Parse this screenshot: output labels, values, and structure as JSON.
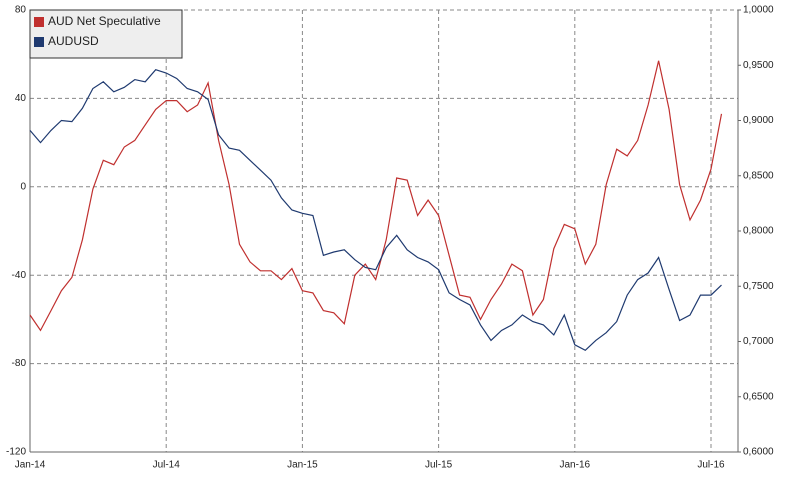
{
  "chart_data": {
    "type": "line",
    "categories": [
      "Jan-14",
      null,
      null,
      null,
      null,
      null,
      null,
      null,
      null,
      null,
      null,
      null,
      null,
      "Jul-14",
      null,
      null,
      null,
      null,
      null,
      null,
      null,
      null,
      null,
      null,
      null,
      null,
      "Jan-15",
      null,
      null,
      null,
      null,
      null,
      null,
      null,
      null,
      null,
      null,
      null,
      null,
      "Jul-15",
      null,
      null,
      null,
      null,
      null,
      null,
      null,
      null,
      null,
      null,
      null,
      null,
      "Jan-16",
      null,
      null,
      null,
      null,
      null,
      null,
      null,
      null,
      null,
      null,
      null,
      null,
      "Jul-16",
      null
    ],
    "series": [
      {
        "name": "AUD Net Speculative",
        "color": "#c0302f",
        "axis": "y",
        "values": [
          -58,
          -65,
          -56,
          -47,
          -41,
          -24,
          -1,
          12,
          10,
          18,
          21,
          28,
          35,
          39,
          39,
          34,
          37,
          47,
          21,
          1,
          -26,
          -34,
          -38,
          -38,
          -42,
          -37,
          -47,
          -48,
          -56,
          -57,
          -62,
          -40,
          -35,
          -42,
          -24,
          4,
          3,
          -13,
          -6,
          -13,
          -31,
          -49,
          -50,
          -60,
          -51,
          -44,
          -35,
          -38,
          -58,
          -51,
          -28,
          -17,
          -19,
          -35,
          -26,
          1,
          17,
          14,
          21,
          37,
          57,
          35,
          1,
          -15,
          -6,
          8,
          33
        ]
      },
      {
        "name": "AUDUSD",
        "color": "#1f3a70",
        "axis": "y2",
        "values": [
          0.891,
          0.88,
          0.891,
          0.9,
          0.899,
          0.911,
          0.929,
          0.935,
          0.926,
          0.93,
          0.937,
          0.935,
          0.946,
          0.943,
          0.938,
          0.929,
          0.926,
          0.919,
          0.887,
          0.875,
          0.873,
          0.864,
          0.855,
          0.846,
          0.83,
          0.819,
          0.816,
          0.814,
          0.778,
          0.781,
          0.783,
          0.774,
          0.767,
          0.765,
          0.785,
          0.796,
          0.783,
          0.776,
          0.772,
          0.765,
          0.744,
          0.738,
          0.733,
          0.715,
          0.701,
          0.71,
          0.715,
          0.724,
          0.718,
          0.715,
          0.706,
          0.724,
          0.697,
          0.692,
          0.701,
          0.708,
          0.718,
          0.742,
          0.756,
          0.762,
          0.776,
          0.747,
          0.719,
          0.724,
          0.742,
          0.742,
          0.751
        ]
      }
    ],
    "ylim": [
      -120,
      80
    ],
    "yticks": [
      -120,
      -80,
      -40,
      0,
      40,
      80
    ],
    "y2lim": [
      0.6,
      1.0
    ],
    "y2ticks": [
      {
        "value": 0.6,
        "label": "0,6000"
      },
      {
        "value": 0.65,
        "label": "0,6500"
      },
      {
        "value": 0.7,
        "label": "0,7000"
      },
      {
        "value": 0.75,
        "label": "0,7500"
      },
      {
        "value": 0.8,
        "label": "0,8000"
      },
      {
        "value": 0.85,
        "label": "0,8500"
      },
      {
        "value": 0.9,
        "label": "0,9000"
      },
      {
        "value": 0.95,
        "label": "0,9500"
      },
      {
        "value": 1.0,
        "label": "1,0000"
      }
    ],
    "grid": true,
    "legend": "upper left"
  }
}
